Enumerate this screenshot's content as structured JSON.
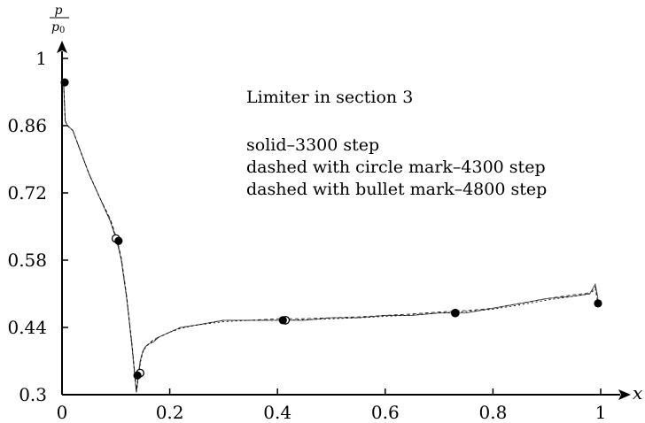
{
  "chart_data": {
    "type": "line",
    "xlabel": "x",
    "ylabel_num": "p",
    "ylabel_den": "p0",
    "ylabel_den_base": "p",
    "ylabel_den_sub": "0",
    "xlim": [
      0,
      1
    ],
    "ylim": [
      0.3,
      1
    ],
    "xticks": [
      0,
      0.2,
      0.4,
      0.6,
      0.8,
      1
    ],
    "xtick_labels": [
      "0",
      "0.2",
      "0.4",
      "0.6",
      "0.8",
      "1"
    ],
    "yticks": [
      0.3,
      0.44,
      0.58,
      0.72,
      0.86,
      1
    ],
    "ytick_labels": [
      "0.3",
      "0.44",
      "0.58",
      "0.72",
      "0.86",
      "1"
    ],
    "grid": false,
    "annotations": [
      "Limiter in section 3",
      "solid–3300 step",
      "dashed with circle mark–4300 step",
      "dashed with bullet mark–4800 step"
    ],
    "series": [
      {
        "style": "solid",
        "x": [
          0.003,
          0.006,
          0.01,
          0.02,
          0.03,
          0.05,
          0.07,
          0.09,
          0.1,
          0.105,
          0.11,
          0.12,
          0.13,
          0.135,
          0.138,
          0.14,
          0.142,
          0.145,
          0.15,
          0.155,
          0.16,
          0.17,
          0.18,
          0.2,
          0.22,
          0.25,
          0.3,
          0.35,
          0.4,
          0.45,
          0.5,
          0.55,
          0.6,
          0.65,
          0.7,
          0.75,
          0.8,
          0.85,
          0.9,
          0.95,
          0.98,
          0.99,
          0.995
        ],
        "y": [
          0.95,
          0.87,
          0.86,
          0.85,
          0.82,
          0.76,
          0.71,
          0.66,
          0.625,
          0.605,
          0.58,
          0.5,
          0.4,
          0.34,
          0.305,
          0.32,
          0.345,
          0.37,
          0.39,
          0.4,
          0.405,
          0.41,
          0.42,
          0.43,
          0.44,
          0.445,
          0.455,
          0.455,
          0.455,
          0.455,
          0.46,
          0.46,
          0.465,
          0.465,
          0.47,
          0.47,
          0.48,
          0.49,
          0.5,
          0.505,
          0.51,
          0.53,
          0.5
        ]
      },
      {
        "style": "dashed-circle",
        "x": [
          0.003,
          0.006,
          0.01,
          0.02,
          0.03,
          0.05,
          0.07,
          0.09,
          0.1,
          0.105,
          0.11,
          0.12,
          0.13,
          0.135,
          0.138,
          0.14,
          0.143,
          0.146,
          0.15,
          0.155,
          0.16,
          0.17,
          0.18,
          0.2,
          0.22,
          0.25,
          0.3,
          0.35,
          0.4,
          0.45,
          0.5,
          0.55,
          0.6,
          0.65,
          0.7,
          0.75,
          0.8,
          0.85,
          0.9,
          0.95,
          0.98,
          0.99,
          0.995
        ],
        "y": [
          0.95,
          0.87,
          0.86,
          0.85,
          0.82,
          0.76,
          0.71,
          0.665,
          0.63,
          0.61,
          0.585,
          0.505,
          0.405,
          0.345,
          0.31,
          0.325,
          0.35,
          0.375,
          0.39,
          0.4,
          0.405,
          0.415,
          0.42,
          0.43,
          0.44,
          0.445,
          0.455,
          0.455,
          0.458,
          0.458,
          0.46,
          0.462,
          0.465,
          0.468,
          0.472,
          0.475,
          0.48,
          0.49,
          0.5,
          0.508,
          0.512,
          0.525,
          0.49
        ],
        "markers_x": [
          0.1,
          0.145,
          0.415,
          0.73
        ],
        "markers_y": [
          0.625,
          0.345,
          0.455,
          0.47
        ]
      },
      {
        "style": "dashed-bullet",
        "x": [
          0.003,
          0.006,
          0.01,
          0.02,
          0.03,
          0.05,
          0.07,
          0.09,
          0.1,
          0.105,
          0.11,
          0.12,
          0.13,
          0.135,
          0.138,
          0.14,
          0.143,
          0.146,
          0.15,
          0.155,
          0.16,
          0.17,
          0.18,
          0.2,
          0.22,
          0.25,
          0.3,
          0.35,
          0.4,
          0.45,
          0.5,
          0.55,
          0.6,
          0.65,
          0.7,
          0.75,
          0.8,
          0.85,
          0.9,
          0.95,
          0.98,
          0.99,
          0.995
        ],
        "y": [
          0.95,
          0.87,
          0.86,
          0.85,
          0.82,
          0.76,
          0.71,
          0.662,
          0.627,
          0.607,
          0.582,
          0.502,
          0.4,
          0.34,
          0.305,
          0.32,
          0.345,
          0.37,
          0.388,
          0.398,
          0.404,
          0.412,
          0.42,
          0.43,
          0.438,
          0.445,
          0.452,
          0.455,
          0.455,
          0.456,
          0.458,
          0.46,
          0.463,
          0.466,
          0.47,
          0.473,
          0.478,
          0.487,
          0.497,
          0.505,
          0.51,
          0.52,
          0.49
        ],
        "markers_x": [
          0.005,
          0.105,
          0.14,
          0.41,
          0.73,
          0.995
        ],
        "markers_y": [
          0.95,
          0.62,
          0.34,
          0.455,
          0.47,
          0.49
        ]
      }
    ]
  }
}
